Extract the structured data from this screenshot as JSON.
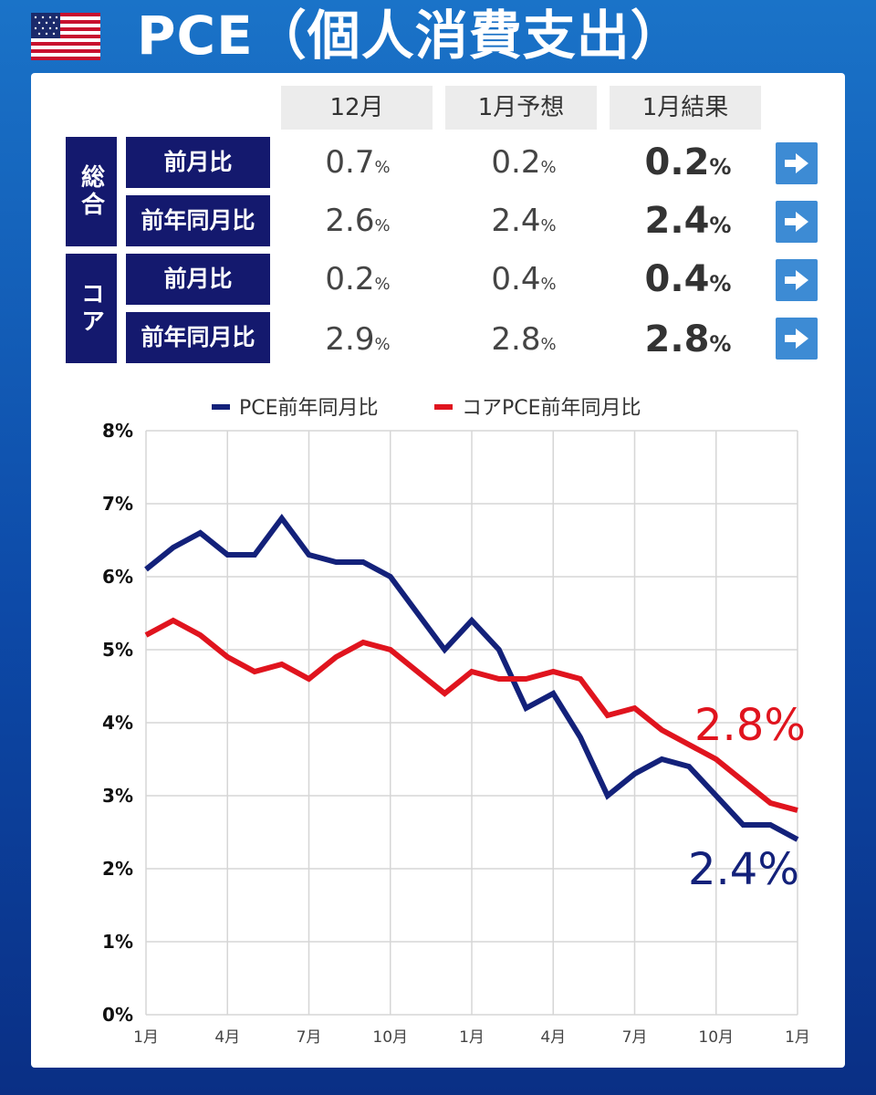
{
  "header": {
    "title": "PCE（個人消費支出）",
    "flag_icon": "us-flag-icon"
  },
  "table": {
    "columns": [
      "12月",
      "1月予想",
      "1月結果"
    ],
    "groups": [
      {
        "label": "総合",
        "rows": [
          {
            "label": "前月比",
            "prev": "0.7",
            "forecast": "0.2",
            "result": "0.2"
          },
          {
            "label": "前年同月比",
            "prev": "2.6",
            "forecast": "2.4",
            "result": "2.4"
          }
        ]
      },
      {
        "label": "コア",
        "rows": [
          {
            "label": "前月比",
            "prev": "0.2",
            "forecast": "0.4",
            "result": "0.4"
          },
          {
            "label": "前年同月比",
            "prev": "2.9",
            "forecast": "2.8",
            "result": "2.8"
          }
        ]
      }
    ],
    "unit": "%",
    "arrow_icon": "arrow-right-icon"
  },
  "chart_data": {
    "type": "line",
    "title": "",
    "xlabel": "",
    "ylabel": "",
    "ylim": [
      0,
      8
    ],
    "yticks": [
      "0%",
      "1%",
      "2%",
      "3%",
      "4%",
      "5%",
      "6%",
      "7%",
      "8%"
    ],
    "xticks": [
      {
        "i": 0,
        "label": "1月"
      },
      {
        "i": 3,
        "label": "4月"
      },
      {
        "i": 6,
        "label": "7月"
      },
      {
        "i": 9,
        "label": "10月"
      },
      {
        "i": 12,
        "label": "1月"
      },
      {
        "i": 15,
        "label": "4月"
      },
      {
        "i": 18,
        "label": "7月"
      },
      {
        "i": 21,
        "label": "10月"
      },
      {
        "i": 24,
        "label": "1月"
      }
    ],
    "grid": true,
    "legend": "top",
    "series": [
      {
        "name": "PCE前年同月比",
        "color": "#13217a",
        "values": [
          6.1,
          6.4,
          6.6,
          6.3,
          6.3,
          6.8,
          6.3,
          6.2,
          6.2,
          6.0,
          5.5,
          5.0,
          5.4,
          5.0,
          4.2,
          4.4,
          3.8,
          3.0,
          3.3,
          3.5,
          3.4,
          3.0,
          2.6,
          2.6,
          2.4
        ],
        "end_label": "2.4%"
      },
      {
        "name": "コアPCE前年同月比",
        "color": "#e0141e",
        "values": [
          5.2,
          5.4,
          5.2,
          4.9,
          4.7,
          4.8,
          4.6,
          4.9,
          5.1,
          5.0,
          4.7,
          4.4,
          4.7,
          4.6,
          4.6,
          4.7,
          4.6,
          4.1,
          4.2,
          3.9,
          3.7,
          3.5,
          3.2,
          2.9,
          2.8
        ],
        "end_label": "2.8%"
      }
    ]
  }
}
